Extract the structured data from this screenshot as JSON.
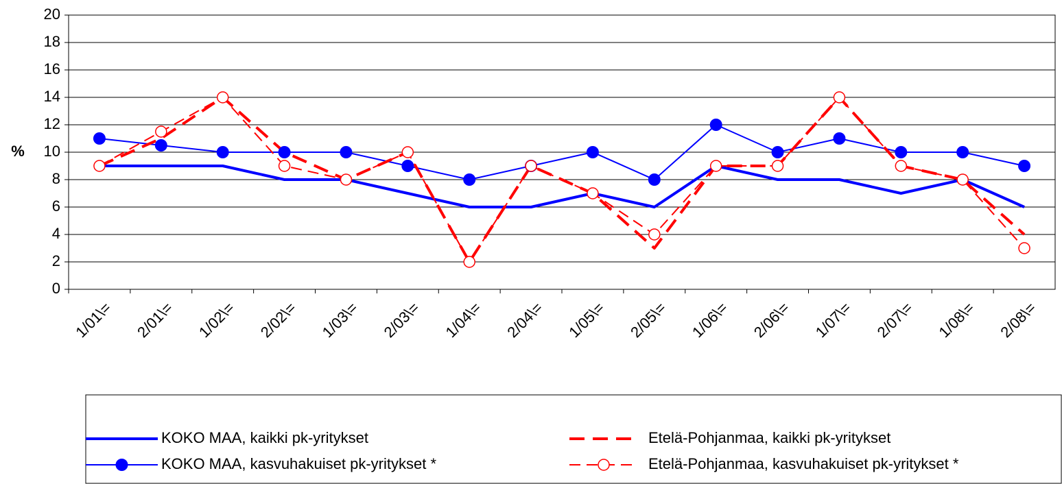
{
  "chart_data": {
    "type": "line",
    "y_label": "%",
    "categories": [
      "1/01\\=",
      "2/01\\=",
      "1/02\\=",
      "2/02\\=",
      "1/03\\=",
      "2/03\\=",
      "1/04\\=",
      "2/04\\=",
      "1/05\\=",
      "2/05\\=",
      "1/06\\=",
      "2/06\\=",
      "1/07\\=",
      "2/07\\=",
      "1/08\\=",
      "2/08\\="
    ],
    "series": [
      {
        "name": "KOKO MAA, kaikki pk-yritykset",
        "color": "#0000ff",
        "style": "solid",
        "width": 4,
        "marker": "none",
        "values": [
          9,
          9,
          9,
          8,
          8,
          7,
          6,
          6,
          7,
          6,
          9,
          8,
          8,
          7,
          8,
          6
        ]
      },
      {
        "name": "KOKO MAA, kasvuhakuiset pk-yritykset *",
        "color": "#0000ff",
        "style": "solid",
        "width": 2,
        "marker": "filled-circle",
        "values": [
          11,
          10.5,
          10,
          10,
          10,
          9,
          8,
          9,
          10,
          8,
          12,
          10,
          11,
          10,
          10,
          9
        ]
      },
      {
        "name": "Etelä-Pohjanmaa, kaikki pk-yritykset",
        "color": "#ff0000",
        "style": "dashed",
        "width": 4,
        "marker": "none",
        "values": [
          9,
          11,
          14,
          10,
          8,
          10,
          2,
          9,
          7,
          3,
          9,
          9,
          14,
          9,
          8,
          4
        ]
      },
      {
        "name": "Etelä-Pohjanmaa, kasvuhakuiset pk-yritykset *",
        "color": "#ff0000",
        "style": "dashed",
        "width": 2,
        "marker": "open-circle",
        "values": [
          9,
          11.5,
          14,
          9,
          8,
          10,
          2,
          9,
          7,
          4,
          9,
          9,
          14,
          9,
          8,
          3
        ]
      }
    ],
    "ylim": [
      0,
      20
    ],
    "yticks": [
      0,
      2,
      4,
      6,
      8,
      10,
      12,
      14,
      16,
      18,
      20
    ],
    "grid": true
  }
}
